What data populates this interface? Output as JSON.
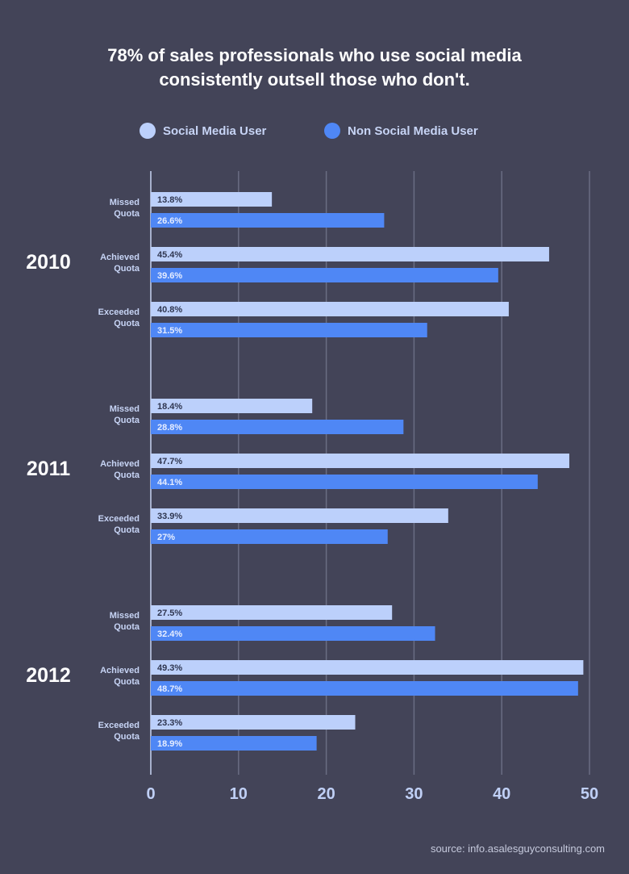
{
  "title_lines": [
    "78% of sales professionals who use social media",
    "consistently outsell those who don't."
  ],
  "legend": [
    {
      "label": "Social Media User",
      "color": "#bcd0fb"
    },
    {
      "label": "Non Social Media User",
      "color": "#4f87f5"
    }
  ],
  "source": "source: info.asalesguyconsulting.com",
  "chart_data": {
    "type": "bar",
    "orientation": "horizontal",
    "xlim": [
      0,
      50
    ],
    "xticks": [
      0,
      10,
      20,
      30,
      40,
      50
    ],
    "grid": true,
    "legend_position": "top",
    "series_colors": [
      "#bcd0fb",
      "#4f87f5"
    ],
    "series_names": [
      "Social Media User",
      "Non Social Media User"
    ],
    "groups": [
      {
        "year": "2010",
        "categories": [
          {
            "label": [
              "Missed",
              "Quota"
            ],
            "values": [
              13.8,
              26.6
            ],
            "labels": [
              "13.8%",
              "26.6%"
            ]
          },
          {
            "label": [
              "Achieved",
              "Quota"
            ],
            "values": [
              45.4,
              39.6
            ],
            "labels": [
              "45.4%",
              "39.6%"
            ]
          },
          {
            "label": [
              "Exceeded",
              "Quota"
            ],
            "values": [
              40.8,
              31.5
            ],
            "labels": [
              "40.8%",
              "31.5%"
            ]
          }
        ]
      },
      {
        "year": "2011",
        "categories": [
          {
            "label": [
              "Missed",
              "Quota"
            ],
            "values": [
              18.4,
              28.8
            ],
            "labels": [
              "18.4%",
              "28.8%"
            ]
          },
          {
            "label": [
              "Achieved",
              "Quota"
            ],
            "values": [
              47.7,
              44.1
            ],
            "labels": [
              "47.7%",
              "44.1%"
            ]
          },
          {
            "label": [
              "Exceeded",
              "Quota"
            ],
            "values": [
              33.9,
              27
            ],
            "labels": [
              "33.9%",
              "27%"
            ]
          }
        ]
      },
      {
        "year": "2012",
        "categories": [
          {
            "label": [
              "Missed",
              "Quota"
            ],
            "values": [
              27.5,
              32.4
            ],
            "labels": [
              "27.5%",
              "32.4%"
            ]
          },
          {
            "label": [
              "Achieved",
              "Quota"
            ],
            "values": [
              49.3,
              48.7
            ],
            "labels": [
              "49.3%",
              "48.7%"
            ]
          },
          {
            "label": [
              "Exceeded",
              "Quota"
            ],
            "values": [
              23.3,
              18.9
            ],
            "labels": [
              "23.3%",
              "18.9%"
            ]
          }
        ]
      }
    ]
  }
}
